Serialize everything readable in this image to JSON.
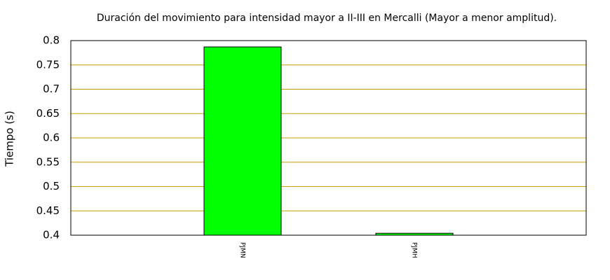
{
  "chart_data": {
    "type": "bar",
    "title": "Duración del movimiento para intensidad mayor a II-III en Mercalli (Mayor a menor amplitud).",
    "y_label": "Tiempo (s)",
    "categories": [
      "PJMN",
      "PJMH"
    ],
    "values": [
      0.787,
      0.404
    ],
    "color": "#00ff00",
    "ylim": [
      0.4,
      0.8
    ],
    "yticks": [
      0.4,
      0.45,
      0.5,
      0.55,
      0.6,
      0.65,
      0.7,
      0.75,
      0.8
    ],
    "grid": true
  }
}
